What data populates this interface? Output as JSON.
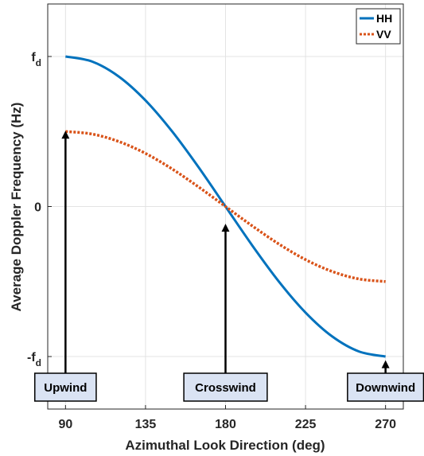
{
  "chart_data": {
    "type": "line",
    "title": "",
    "xlabel": "Azimuthal Look Direction (deg)",
    "ylabel": "Average Doppler Frequency (Hz)",
    "xlim": [
      80,
      280
    ],
    "ylim": [
      -1.35,
      1.35
    ],
    "xticks": [
      90,
      135,
      180,
      225,
      270
    ],
    "xtick_labels": [
      "90",
      "135",
      "180",
      "225",
      "270"
    ],
    "yticks": [
      -1,
      0,
      1
    ],
    "ytick_labels": [
      {
        "main": "-f",
        "sub": "d"
      },
      {
        "main": "0",
        "sub": ""
      },
      {
        "main": "f",
        "sub": "d"
      }
    ],
    "grid": true,
    "legend_position": "top-right",
    "series": [
      {
        "name": "HH",
        "color": "#0072BD",
        "style": "solid",
        "x": [
          90,
          105,
          120,
          135,
          150,
          165,
          180,
          195,
          210,
          225,
          240,
          255,
          270
        ],
        "y": [
          1.0,
          0.966,
          0.866,
          0.707,
          0.5,
          0.259,
          0.0,
          -0.259,
          -0.5,
          -0.707,
          -0.866,
          -0.966,
          -1.0
        ]
      },
      {
        "name": "VV",
        "color": "#D95319",
        "style": "dotted",
        "x": [
          90,
          105,
          120,
          135,
          150,
          165,
          180,
          195,
          210,
          225,
          240,
          255,
          270
        ],
        "y": [
          0.5,
          0.483,
          0.433,
          0.354,
          0.25,
          0.129,
          0.0,
          -0.129,
          -0.25,
          -0.354,
          -0.433,
          -0.483,
          -0.5
        ]
      }
    ],
    "annotations": [
      {
        "label": "Upwind",
        "x": 90,
        "y_tip": 0.5
      },
      {
        "label": "Crosswind",
        "x": 180,
        "y_tip": -0.12
      },
      {
        "label": "Downwind",
        "x": 270,
        "y_tip": -1.03
      }
    ]
  }
}
